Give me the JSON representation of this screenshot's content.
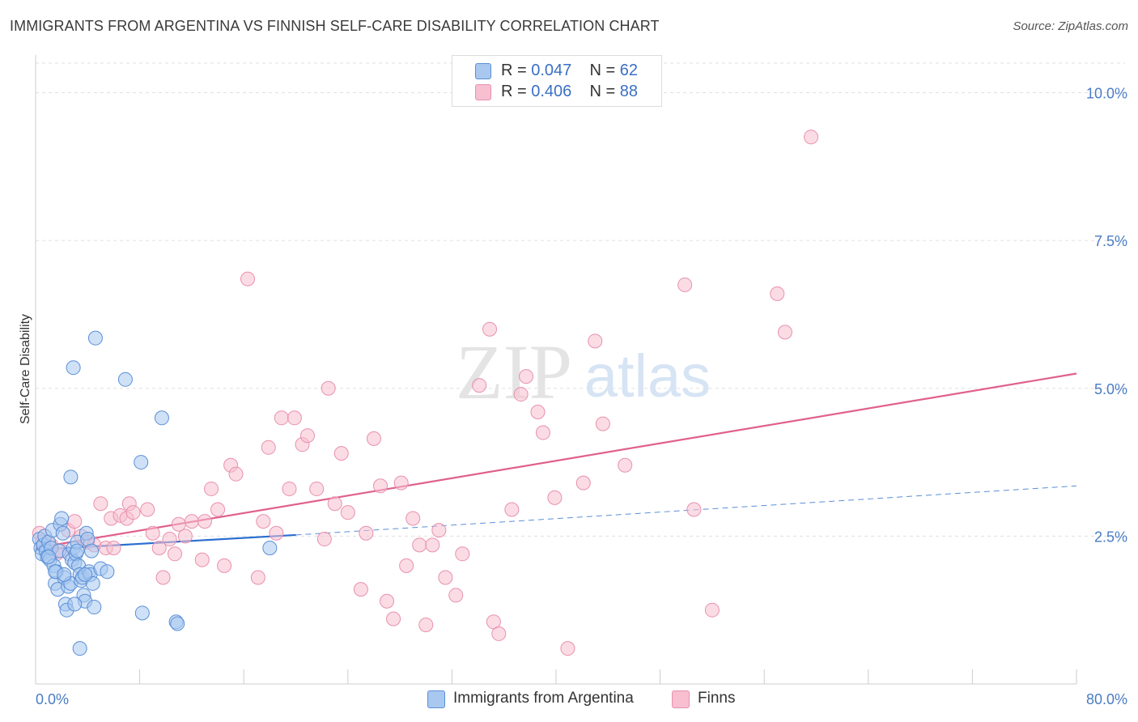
{
  "header": {
    "title": "IMMIGRANTS FROM ARGENTINA VS FINNISH SELF-CARE DISABILITY CORRELATION CHART",
    "source": "Source: ZipAtlas.com"
  },
  "watermark": {
    "zip": "ZIP",
    "atlas": "atlas"
  },
  "legend": {
    "rows": [
      {
        "r_label": "R = ",
        "r_value": "0.047",
        "n_label": "N = ",
        "n_value": "62"
      },
      {
        "r_label": "R = ",
        "r_value": "0.406",
        "n_label": "N = ",
        "n_value": "88"
      }
    ]
  },
  "colors": {
    "blue_fill": "#a8c8f0",
    "blue_stroke": "#5b8fd6",
    "blue_line": "#2b6fd0",
    "pink_fill": "#f7bfd0",
    "pink_stroke": "#e890ae",
    "pink_line": "#e0608e",
    "grid": "#e0e0e0",
    "tick": "#4a7cc4"
  },
  "chart_data": {
    "type": "scatter",
    "title": "IMMIGRANTS FROM ARGENTINA VS FINNISH SELF-CARE DISABILITY CORRELATION CHART",
    "xlabel": "",
    "ylabel": "Self-Care Disability",
    "xlim": [
      0,
      80
    ],
    "ylim": [
      0,
      10.5
    ],
    "x_tick_labels": [
      "0.0%",
      "80.0%"
    ],
    "y_ticks": [
      2.5,
      5.0,
      7.5,
      10.0
    ],
    "y_tick_labels": [
      "2.5%",
      "5.0%",
      "7.5%",
      "10.0%"
    ],
    "grid": true,
    "legend": [
      "Immigrants from Argentina",
      "Finns"
    ],
    "series": [
      {
        "name": "Immigrants from Argentina",
        "color": "#a8c8f0",
        "trend": {
          "x": [
            0,
            20
          ],
          "y": [
            2.27,
            2.52
          ],
          "dashed_extension": {
            "x": [
              20,
              80
            ],
            "y": [
              2.52,
              3.35
            ]
          }
        },
        "points": [
          [
            0.3,
            2.45
          ],
          [
            0.4,
            2.3
          ],
          [
            0.5,
            2.2
          ],
          [
            0.6,
            2.35
          ],
          [
            0.7,
            2.5
          ],
          [
            0.8,
            2.25
          ],
          [
            0.9,
            2.15
          ],
          [
            1.0,
            2.4
          ],
          [
            1.1,
            2.1
          ],
          [
            1.2,
            2.3
          ],
          [
            1.3,
            2.6
          ],
          [
            1.4,
            2.0
          ],
          [
            1.5,
            1.7
          ],
          [
            1.6,
            1.9
          ],
          [
            1.7,
            1.6
          ],
          [
            1.8,
            2.25
          ],
          [
            1.9,
            2.7
          ],
          [
            2.0,
            2.8
          ],
          [
            2.1,
            2.55
          ],
          [
            2.2,
            1.8
          ],
          [
            2.3,
            1.35
          ],
          [
            2.4,
            1.25
          ],
          [
            2.5,
            1.65
          ],
          [
            2.6,
            2.2
          ],
          [
            2.7,
            1.7
          ],
          [
            2.8,
            2.1
          ],
          [
            2.9,
            2.3
          ],
          [
            3.0,
            2.05
          ],
          [
            3.1,
            2.2
          ],
          [
            3.2,
            2.4
          ],
          [
            3.3,
            2.0
          ],
          [
            3.4,
            1.85
          ],
          [
            3.5,
            1.75
          ],
          [
            3.6,
            1.8
          ],
          [
            3.7,
            1.5
          ],
          [
            3.8,
            1.4
          ],
          [
            3.9,
            2.55
          ],
          [
            4.0,
            2.45
          ],
          [
            4.1,
            1.9
          ],
          [
            4.2,
            1.85
          ],
          [
            4.3,
            2.25
          ],
          [
            4.4,
            1.7
          ],
          [
            4.5,
            1.3
          ],
          [
            4.6,
            5.85
          ],
          [
            5.0,
            1.95
          ],
          [
            5.5,
            1.9
          ],
          [
            6.9,
            5.15
          ],
          [
            8.1,
            3.75
          ],
          [
            8.2,
            1.2
          ],
          [
            9.7,
            4.5
          ],
          [
            10.8,
            1.05
          ],
          [
            10.9,
            1.02
          ],
          [
            3.4,
            0.6
          ],
          [
            2.9,
            5.35
          ],
          [
            2.7,
            3.5
          ],
          [
            3.2,
            2.25
          ],
          [
            1.5,
            1.9
          ],
          [
            2.2,
            1.85
          ],
          [
            3.8,
            1.85
          ],
          [
            1.0,
            2.15
          ],
          [
            18.0,
            2.3
          ],
          [
            3.0,
            1.35
          ]
        ]
      },
      {
        "name": "Finns",
        "color": "#f7bfd0",
        "trend": {
          "x": [
            0,
            80
          ],
          "y": [
            2.3,
            5.25
          ]
        },
        "points": [
          [
            0.3,
            2.55
          ],
          [
            0.5,
            2.4
          ],
          [
            0.8,
            2.3
          ],
          [
            1.2,
            2.35
          ],
          [
            1.6,
            2.2
          ],
          [
            2.0,
            2.25
          ],
          [
            2.5,
            2.6
          ],
          [
            3.0,
            2.75
          ],
          [
            3.5,
            2.5
          ],
          [
            4.0,
            2.4
          ],
          [
            4.5,
            2.35
          ],
          [
            5.0,
            3.05
          ],
          [
            5.4,
            2.3
          ],
          [
            5.8,
            2.8
          ],
          [
            6.0,
            2.3
          ],
          [
            6.5,
            2.85
          ],
          [
            7.0,
            2.8
          ],
          [
            7.2,
            3.05
          ],
          [
            7.5,
            2.9
          ],
          [
            8.6,
            2.95
          ],
          [
            9.0,
            2.55
          ],
          [
            9.5,
            2.3
          ],
          [
            9.8,
            1.8
          ],
          [
            10.3,
            2.45
          ],
          [
            10.7,
            2.2
          ],
          [
            11.0,
            2.7
          ],
          [
            11.5,
            2.5
          ],
          [
            12.0,
            2.75
          ],
          [
            12.8,
            2.1
          ],
          [
            13.0,
            2.75
          ],
          [
            13.5,
            3.3
          ],
          [
            14.0,
            2.95
          ],
          [
            14.5,
            2.0
          ],
          [
            15.0,
            3.7
          ],
          [
            15.4,
            3.55
          ],
          [
            16.3,
            6.85
          ],
          [
            17.1,
            1.8
          ],
          [
            17.5,
            2.75
          ],
          [
            17.9,
            4.0
          ],
          [
            18.5,
            2.55
          ],
          [
            18.9,
            4.5
          ],
          [
            19.5,
            3.3
          ],
          [
            19.9,
            4.5
          ],
          [
            20.5,
            4.05
          ],
          [
            20.9,
            4.2
          ],
          [
            21.6,
            3.3
          ],
          [
            22.2,
            2.45
          ],
          [
            22.5,
            5.0
          ],
          [
            23.0,
            3.05
          ],
          [
            23.5,
            3.9
          ],
          [
            24.0,
            2.9
          ],
          [
            25.0,
            1.6
          ],
          [
            25.4,
            2.55
          ],
          [
            26.0,
            4.15
          ],
          [
            26.5,
            3.35
          ],
          [
            27.0,
            1.4
          ],
          [
            27.5,
            1.1
          ],
          [
            28.1,
            3.4
          ],
          [
            28.5,
            2.0
          ],
          [
            29.0,
            2.8
          ],
          [
            29.5,
            2.35
          ],
          [
            30.0,
            1.0
          ],
          [
            30.5,
            2.35
          ],
          [
            31.0,
            2.6
          ],
          [
            31.5,
            1.8
          ],
          [
            32.3,
            1.5
          ],
          [
            32.8,
            2.2
          ],
          [
            34.1,
            5.05
          ],
          [
            34.9,
            6.0
          ],
          [
            35.2,
            1.05
          ],
          [
            35.6,
            0.85
          ],
          [
            36.6,
            2.95
          ],
          [
            37.3,
            4.9
          ],
          [
            37.7,
            5.2
          ],
          [
            38.6,
            4.6
          ],
          [
            39.0,
            4.25
          ],
          [
            39.9,
            3.15
          ],
          [
            40.9,
            0.6
          ],
          [
            42.1,
            3.4
          ],
          [
            43.0,
            5.8
          ],
          [
            43.6,
            4.4
          ],
          [
            45.3,
            3.7
          ],
          [
            49.9,
            6.75
          ],
          [
            50.6,
            2.95
          ],
          [
            52.0,
            1.25
          ],
          [
            57.0,
            6.6
          ],
          [
            57.6,
            5.95
          ],
          [
            59.6,
            9.25
          ]
        ]
      }
    ]
  }
}
